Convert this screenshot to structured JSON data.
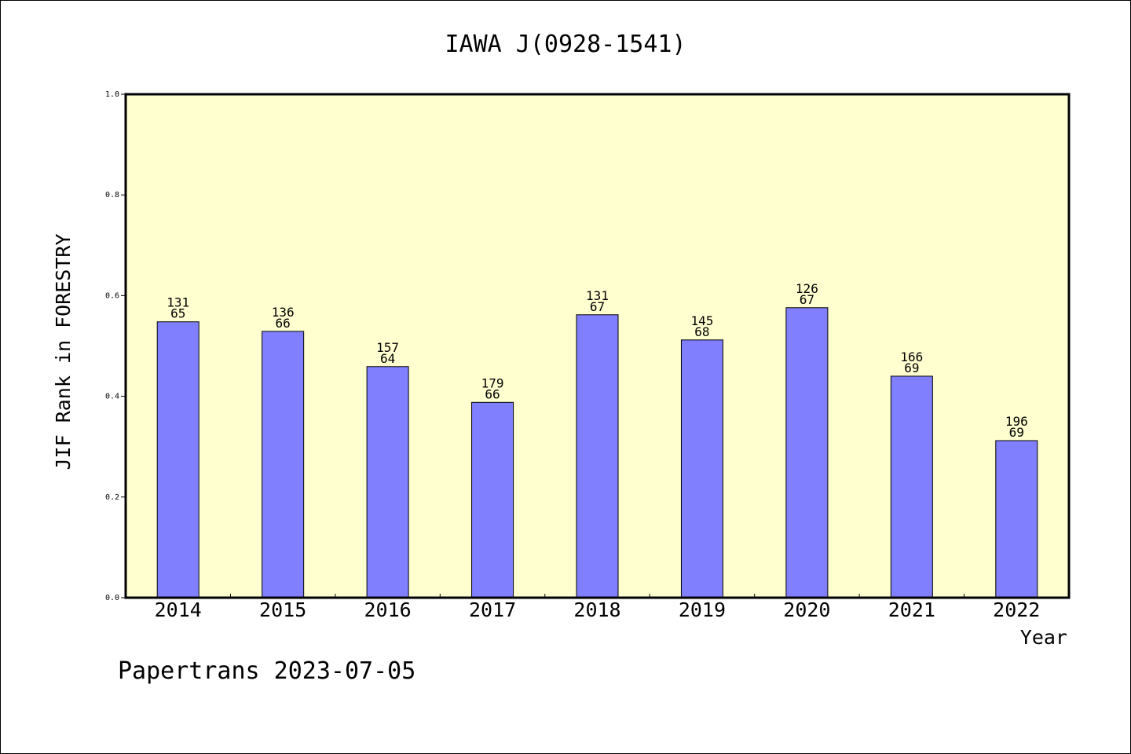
{
  "chart_data": {
    "type": "bar",
    "title": "IAWA J(0928-1541)",
    "xlabel": "Year",
    "ylabel": "JIF Rank in FORESTRY",
    "categories": [
      "2014",
      "2015",
      "2016",
      "2017",
      "2018",
      "2019",
      "2020",
      "2021",
      "2022"
    ],
    "values": [
      0.548,
      0.529,
      0.459,
      0.388,
      0.562,
      0.512,
      0.576,
      0.44,
      0.312
    ],
    "rank_total": [
      "131",
      "136",
      "157",
      "179",
      "131",
      "145",
      "126",
      "166",
      "196"
    ],
    "rank": [
      "65",
      "66",
      "64",
      "66",
      "67",
      "68",
      "67",
      "69",
      "69"
    ],
    "ylim": [
      0,
      1.0
    ],
    "yticks": [
      "0.0",
      "0.2",
      "0.4",
      "0.6",
      "0.8",
      "1.0"
    ],
    "grid": false,
    "plot_background": "#ffffd0",
    "bar_color": "#8080ff"
  },
  "footer": "Papertrans 2023-07-05"
}
